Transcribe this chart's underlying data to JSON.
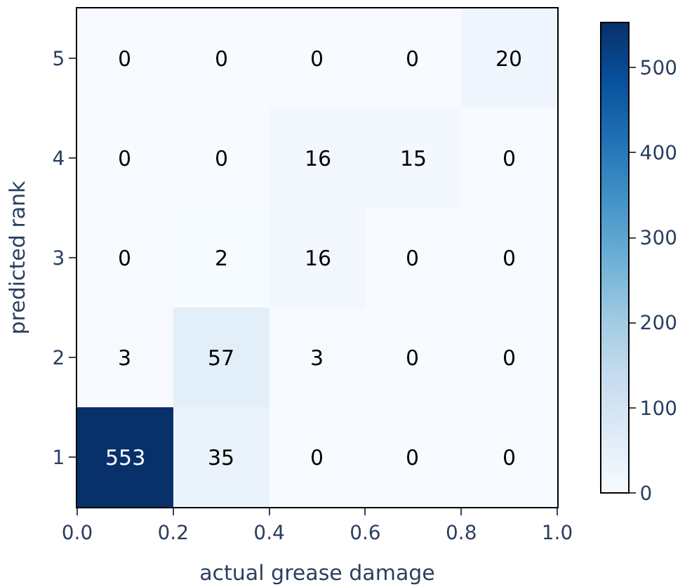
{
  "chart_data": {
    "type": "heatmap",
    "xlabel": "actual grease damage",
    "ylabel": "predicted rank",
    "x": [
      0.1,
      0.3,
      0.5,
      0.7,
      0.9
    ],
    "xlim": [
      0.0,
      1.0
    ],
    "xticks": [
      {
        "value": 0,
        "label": "0.0"
      },
      {
        "value": 0.2,
        "label": "0.2"
      },
      {
        "value": 0.4,
        "label": "0.4"
      },
      {
        "value": 0.6,
        "label": "0.6"
      },
      {
        "value": 0.8,
        "label": "0.8"
      },
      {
        "value": 1,
        "label": "1.0"
      }
    ],
    "y_categories": [
      "5",
      "4",
      "3",
      "2",
      "1"
    ],
    "cells": [
      [
        0,
        0,
        0,
        0,
        20
      ],
      [
        0,
        0,
        16,
        15,
        0
      ],
      [
        0,
        2,
        16,
        0,
        0
      ],
      [
        3,
        57,
        3,
        0,
        0
      ],
      [
        553,
        35,
        0,
        0,
        0
      ]
    ],
    "clim": [
      0,
      553
    ],
    "cticks": [
      0,
      100,
      200,
      300,
      400,
      500
    ],
    "data_labels": true
  }
}
